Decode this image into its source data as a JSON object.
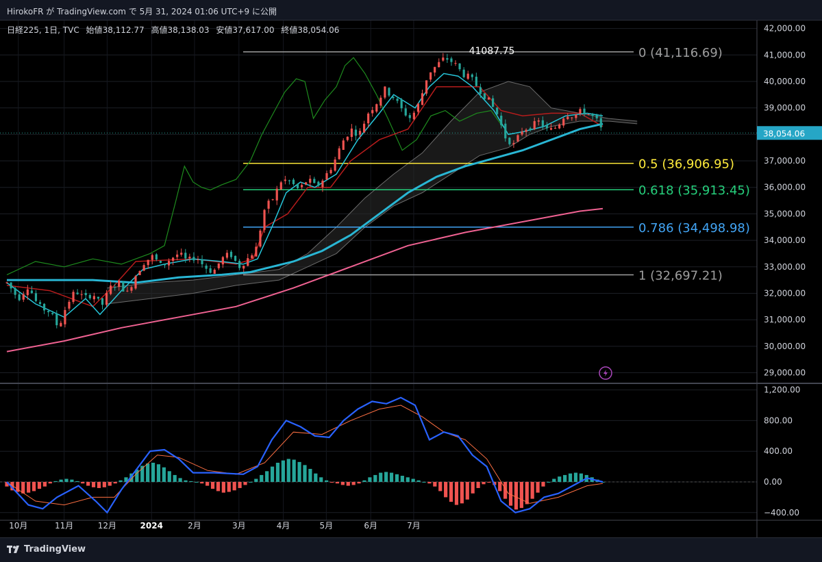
{
  "header": {
    "published": "HirokoFR が TradingView.com で 5月 31, 2024 01:06 UTC+9 に公開"
  },
  "legend": {
    "symbol": "日経225, 1日, TVC",
    "open_label": "始値",
    "open": "38,112.77",
    "high_label": "高値",
    "high": "38,138.03",
    "low_label": "安値",
    "low": "37,617.00",
    "close_label": "終値",
    "close": "38,054.06"
  },
  "footer": {
    "brand": "TradingView"
  },
  "colors": {
    "up": "#ef5350",
    "down": "#26a69a",
    "ma_fast": "#29b6d4",
    "ma_slow": "#f06292",
    "kijun": "#b71c1c",
    "tenkan": "#26c6da",
    "chikou": "#1e8c1e",
    "fib_05": "#ffeb3b",
    "fib_0618": "#26d07c",
    "fib_0786": "#42a5f5",
    "fib_grey": "#9e9e9e",
    "macd": "#2962ff",
    "signal": "#ff7043"
  },
  "chart_data": [
    {
      "type": "candlestick",
      "title": "日経225, 1日, TVC",
      "x_labels": [
        "10月",
        "11月",
        "12月",
        "2024",
        "2月",
        "3月",
        "4月",
        "5月",
        "6月",
        "7月"
      ],
      "ylim": [
        28600,
        42300
      ],
      "y_ticks": [
        "42,000.00",
        "41,000.00",
        "40,000.00",
        "39,000.00",
        "38,000.00",
        "37,000.00",
        "36,000.00",
        "35,000.00",
        "34,000.00",
        "33,000.00",
        "32,000.00",
        "31,000.00",
        "30,000.00",
        "29,000.00"
      ],
      "last_price": {
        "value": 38054.06,
        "label": "38,054.06"
      },
      "peak_annotation": {
        "value": 41087.75,
        "label": "41087.75"
      },
      "fibonacci": [
        {
          "ratio": "0",
          "price": 41116.69,
          "label": "0 (41,116.69)",
          "color": "#9e9e9e"
        },
        {
          "ratio": "0.5",
          "price": 36906.95,
          "label": "0.5 (36,906.95)",
          "color": "#ffeb3b"
        },
        {
          "ratio": "0.618",
          "price": 35913.45,
          "label": "0.618 (35,913.45)",
          "color": "#26d07c"
        },
        {
          "ratio": "0.786",
          "price": 34498.98,
          "label": "0.786 (34,498.98)",
          "color": "#42a5f5"
        },
        {
          "ratio": "1",
          "price": 32697.21,
          "label": "1 (32,697.21)",
          "color": "#9e9e9e"
        }
      ],
      "price_path": [
        [
          0,
          32400
        ],
        [
          8,
          31800
        ],
        [
          15,
          32300
        ],
        [
          22,
          31500
        ],
        [
          30,
          31300
        ],
        [
          36,
          30700
        ],
        [
          42,
          31600
        ],
        [
          48,
          32100
        ],
        [
          54,
          31800
        ],
        [
          60,
          32000
        ],
        [
          66,
          31500
        ],
        [
          72,
          32200
        ],
        [
          78,
          32400
        ],
        [
          84,
          32000
        ],
        [
          90,
          32700
        ],
        [
          96,
          33200
        ],
        [
          102,
          33400
        ],
        [
          108,
          33000
        ],
        [
          114,
          33300
        ],
        [
          120,
          33500
        ],
        [
          126,
          33200
        ],
        [
          132,
          33400
        ],
        [
          138,
          33000
        ],
        [
          144,
          32800
        ],
        [
          150,
          33300
        ],
        [
          156,
          33500
        ],
        [
          162,
          33000
        ],
        [
          168,
          33300
        ],
        [
          174,
          33700
        ],
        [
          180,
          35200
        ],
        [
          186,
          35600
        ],
        [
          192,
          36300
        ],
        [
          198,
          36200
        ],
        [
          204,
          35900
        ],
        [
          210,
          36300
        ],
        [
          216,
          36000
        ],
        [
          222,
          36400
        ],
        [
          228,
          36900
        ],
        [
          234,
          37700
        ],
        [
          240,
          38200
        ],
        [
          246,
          38000
        ],
        [
          252,
          38800
        ],
        [
          258,
          39200
        ],
        [
          264,
          39700
        ],
        [
          270,
          39400
        ],
        [
          276,
          38900
        ],
        [
          282,
          38600
        ],
        [
          288,
          39200
        ],
        [
          294,
          40300
        ],
        [
          300,
          40600
        ],
        [
          306,
          40900
        ],
        [
          312,
          40700
        ],
        [
          318,
          40300
        ],
        [
          324,
          40100
        ],
        [
          330,
          39700
        ],
        [
          336,
          39300
        ],
        [
          342,
          38800
        ],
        [
          348,
          37900
        ],
        [
          354,
          37600
        ],
        [
          360,
          38200
        ],
        [
          366,
          38300
        ],
        [
          372,
          38500
        ],
        [
          378,
          38100
        ],
        [
          384,
          38300
        ],
        [
          390,
          38800
        ],
        [
          396,
          38700
        ],
        [
          402,
          38900
        ],
        [
          408,
          38700
        ],
        [
          412,
          38500
        ],
        [
          416,
          38054
        ]
      ],
      "ma_fast_path": [
        [
          0,
          32500
        ],
        [
          60,
          32500
        ],
        [
          90,
          32400
        ],
        [
          120,
          32600
        ],
        [
          150,
          32700
        ],
        [
          170,
          32800
        ],
        [
          200,
          33200
        ],
        [
          220,
          33600
        ],
        [
          240,
          34200
        ],
        [
          260,
          35000
        ],
        [
          280,
          35800
        ],
        [
          300,
          36400
        ],
        [
          320,
          36800
        ],
        [
          340,
          37100
        ],
        [
          360,
          37400
        ],
        [
          380,
          37800
        ],
        [
          400,
          38200
        ],
        [
          416,
          38400
        ]
      ],
      "ma_slow_path": [
        [
          0,
          29800
        ],
        [
          40,
          30200
        ],
        [
          80,
          30700
        ],
        [
          120,
          31100
        ],
        [
          160,
          31500
        ],
        [
          200,
          32200
        ],
        [
          240,
          33000
        ],
        [
          280,
          33800
        ],
        [
          320,
          34300
        ],
        [
          360,
          34700
        ],
        [
          400,
          35100
        ],
        [
          416,
          35200
        ]
      ],
      "kijun_path": [
        [
          0,
          32300
        ],
        [
          30,
          32100
        ],
        [
          60,
          31500
        ],
        [
          75,
          32300
        ],
        [
          90,
          33200
        ],
        [
          130,
          33300
        ],
        [
          160,
          33100
        ],
        [
          172,
          33300
        ],
        [
          180,
          34500
        ],
        [
          196,
          35000
        ],
        [
          210,
          36000
        ],
        [
          226,
          36000
        ],
        [
          240,
          37000
        ],
        [
          260,
          37800
        ],
        [
          280,
          38200
        ],
        [
          290,
          39000
        ],
        [
          300,
          39800
        ],
        [
          330,
          39800
        ],
        [
          345,
          38900
        ],
        [
          360,
          38700
        ],
        [
          380,
          38800
        ],
        [
          400,
          38800
        ],
        [
          416,
          38300
        ]
      ],
      "tenkan_path": [
        [
          0,
          32400
        ],
        [
          20,
          31600
        ],
        [
          40,
          31100
        ],
        [
          55,
          31800
        ],
        [
          65,
          31200
        ],
        [
          80,
          32100
        ],
        [
          95,
          32900
        ],
        [
          110,
          33100
        ],
        [
          130,
          33300
        ],
        [
          150,
          33200
        ],
        [
          165,
          33100
        ],
        [
          175,
          33300
        ],
        [
          185,
          34500
        ],
        [
          195,
          35800
        ],
        [
          205,
          36200
        ],
        [
          215,
          36000
        ],
        [
          230,
          36500
        ],
        [
          245,
          37800
        ],
        [
          260,
          38800
        ],
        [
          270,
          39500
        ],
        [
          285,
          39000
        ],
        [
          295,
          39800
        ],
        [
          305,
          40300
        ],
        [
          315,
          40200
        ],
        [
          325,
          39800
        ],
        [
          340,
          38900
        ],
        [
          350,
          38000
        ],
        [
          360,
          38100
        ],
        [
          375,
          38300
        ],
        [
          390,
          38700
        ],
        [
          405,
          38800
        ],
        [
          416,
          38700
        ]
      ],
      "chikou_path": [
        [
          0,
          32700
        ],
        [
          20,
          33200
        ],
        [
          40,
          33000
        ],
        [
          60,
          33300
        ],
        [
          80,
          33100
        ],
        [
          100,
          33500
        ],
        [
          110,
          33800
        ],
        [
          118,
          35500
        ],
        [
          124,
          36800
        ],
        [
          130,
          36200
        ],
        [
          136,
          36000
        ],
        [
          142,
          35900
        ],
        [
          150,
          36100
        ],
        [
          160,
          36300
        ],
        [
          170,
          37000
        ],
        [
          178,
          38000
        ],
        [
          186,
          38800
        ],
        [
          194,
          39600
        ],
        [
          202,
          40100
        ],
        [
          208,
          40000
        ],
        [
          214,
          38600
        ],
        [
          222,
          39300
        ],
        [
          230,
          39800
        ],
        [
          236,
          40600
        ],
        [
          242,
          40900
        ],
        [
          250,
          40300
        ],
        [
          258,
          39500
        ],
        [
          266,
          38600
        ],
        [
          276,
          37400
        ],
        [
          286,
          37800
        ],
        [
          296,
          38700
        ],
        [
          306,
          38900
        ],
        [
          316,
          38500
        ],
        [
          328,
          38800
        ],
        [
          338,
          38900
        ],
        [
          346,
          38300
        ]
      ],
      "cloud_upper": [
        [
          70,
          32200
        ],
        [
          100,
          32400
        ],
        [
          130,
          32500
        ],
        [
          160,
          32700
        ],
        [
          190,
          32900
        ],
        [
          210,
          33500
        ],
        [
          230,
          34500
        ],
        [
          250,
          35600
        ],
        [
          270,
          36500
        ],
        [
          290,
          37300
        ],
        [
          310,
          38500
        ],
        [
          330,
          39600
        ],
        [
          350,
          40000
        ],
        [
          365,
          39800
        ],
        [
          380,
          39000
        ],
        [
          400,
          38800
        ],
        [
          420,
          38600
        ],
        [
          440,
          38500
        ]
      ],
      "cloud_lower": [
        [
          70,
          31600
        ],
        [
          100,
          31800
        ],
        [
          130,
          32000
        ],
        [
          160,
          32300
        ],
        [
          190,
          32500
        ],
        [
          210,
          33000
        ],
        [
          230,
          33500
        ],
        [
          250,
          34500
        ],
        [
          270,
          35300
        ],
        [
          290,
          35800
        ],
        [
          310,
          36500
        ],
        [
          330,
          37200
        ],
        [
          350,
          37500
        ],
        [
          365,
          38000
        ],
        [
          380,
          38300
        ],
        [
          400,
          38500
        ],
        [
          420,
          38500
        ],
        [
          440,
          38400
        ]
      ]
    },
    {
      "type": "macd",
      "ylim": [
        -500,
        1250
      ],
      "y_ticks": [
        "1,200.00",
        "800.00",
        "400.00",
        "0.00",
        "−400.00"
      ],
      "macd_path": [
        [
          0,
          0
        ],
        [
          15,
          -300
        ],
        [
          25,
          -350
        ],
        [
          35,
          -200
        ],
        [
          50,
          -50
        ],
        [
          62,
          -250
        ],
        [
          70,
          -400
        ],
        [
          80,
          -100
        ],
        [
          90,
          150
        ],
        [
          100,
          400
        ],
        [
          110,
          420
        ],
        [
          120,
          300
        ],
        [
          130,
          120
        ],
        [
          145,
          120
        ],
        [
          165,
          100
        ],
        [
          175,
          200
        ],
        [
          185,
          550
        ],
        [
          195,
          800
        ],
        [
          205,
          720
        ],
        [
          215,
          600
        ],
        [
          225,
          580
        ],
        [
          235,
          800
        ],
        [
          245,
          950
        ],
        [
          255,
          1050
        ],
        [
          265,
          1020
        ],
        [
          275,
          1100
        ],
        [
          285,
          1000
        ],
        [
          295,
          550
        ],
        [
          305,
          650
        ],
        [
          315,
          600
        ],
        [
          325,
          350
        ],
        [
          335,
          200
        ],
        [
          345,
          -250
        ],
        [
          355,
          -400
        ],
        [
          365,
          -350
        ],
        [
          375,
          -200
        ],
        [
          385,
          -150
        ],
        [
          395,
          -50
        ],
        [
          405,
          50
        ],
        [
          416,
          0
        ]
      ],
      "signal_path": [
        [
          0,
          0
        ],
        [
          20,
          -250
        ],
        [
          40,
          -300
        ],
        [
          60,
          -200
        ],
        [
          75,
          -200
        ],
        [
          90,
          100
        ],
        [
          105,
          350
        ],
        [
          120,
          320
        ],
        [
          140,
          150
        ],
        [
          160,
          100
        ],
        [
          180,
          250
        ],
        [
          200,
          650
        ],
        [
          220,
          620
        ],
        [
          240,
          800
        ],
        [
          260,
          950
        ],
        [
          275,
          1000
        ],
        [
          290,
          850
        ],
        [
          305,
          650
        ],
        [
          320,
          550
        ],
        [
          335,
          300
        ],
        [
          350,
          -150
        ],
        [
          365,
          -280
        ],
        [
          385,
          -200
        ],
        [
          405,
          -50
        ],
        [
          416,
          -20
        ]
      ],
      "histogram": [
        -60,
        -110,
        -130,
        -150,
        -140,
        -120,
        -90,
        -60,
        -20,
        10,
        30,
        40,
        30,
        10,
        -20,
        -50,
        -70,
        -80,
        -70,
        -50,
        -20,
        20,
        60,
        110,
        160,
        210,
        240,
        250,
        230,
        190,
        140,
        90,
        50,
        20,
        10,
        0,
        -20,
        -50,
        -90,
        -120,
        -140,
        -130,
        -110,
        -80,
        -40,
        0,
        40,
        90,
        140,
        200,
        250,
        280,
        300,
        290,
        260,
        220,
        170,
        110,
        60,
        20,
        -10,
        -20,
        -40,
        -50,
        -40,
        -20,
        20,
        60,
        90,
        120,
        130,
        120,
        100,
        80,
        60,
        40,
        20,
        0,
        -20,
        -60,
        -120,
        -200,
        -260,
        -300,
        -280,
        -230,
        -150,
        -80,
        -30,
        -10,
        -40,
        -120,
        -220,
        -310,
        -360,
        -340,
        -290,
        -220,
        -140,
        -60,
        0,
        40,
        70,
        90,
        110,
        120,
        110,
        90,
        60,
        30,
        0
      ],
      "x_labels": [
        "10月",
        "11月",
        "12月",
        "2024",
        "2月",
        "3月",
        "4月",
        "5月",
        "6月",
        "7月"
      ]
    }
  ]
}
